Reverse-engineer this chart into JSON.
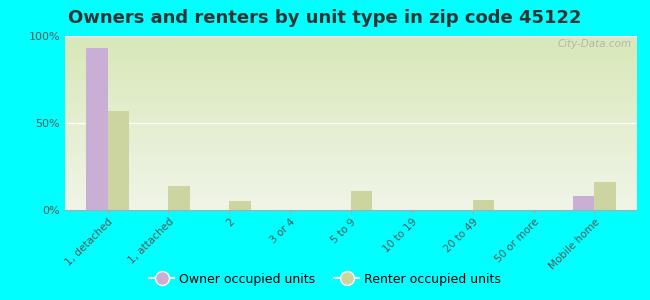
{
  "title": "Owners and renters by unit type in zip code 45122",
  "categories": [
    "1, detached",
    "1, attached",
    "2",
    "3 or 4",
    "5 to 9",
    "10 to 19",
    "20 to 49",
    "50 or more",
    "Mobile home"
  ],
  "owner_values": [
    93,
    0,
    0,
    0,
    0,
    0,
    0,
    0,
    8
  ],
  "renter_values": [
    57,
    14,
    5,
    0,
    11,
    0,
    6,
    0,
    16
  ],
  "owner_color": "#c9aed6",
  "renter_color": "#ccd4a0",
  "background_color": "#00ffff",
  "plot_bg_color": "#e8f0d0",
  "ylim": [
    0,
    100
  ],
  "yticks": [
    0,
    50,
    100
  ],
  "ytick_labels": [
    "0%",
    "50%",
    "100%"
  ],
  "bar_width": 0.35,
  "title_fontsize": 13,
  "legend_labels": [
    "Owner occupied units",
    "Renter occupied units"
  ],
  "watermark": "City-Data.com"
}
